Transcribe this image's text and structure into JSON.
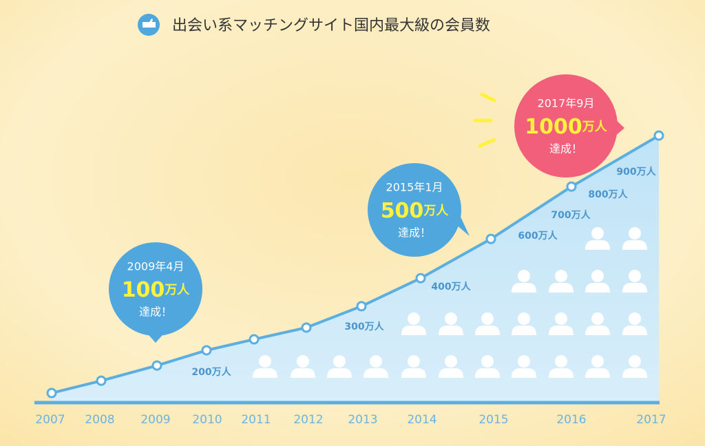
{
  "chart_data": {
    "type": "line",
    "title": "出会い系マッチングサイト国内最大級の会員数",
    "categories": [
      "2007",
      "2008",
      "2009",
      "2010",
      "2011",
      "2012",
      "2013",
      "2014",
      "2015",
      "2016",
      "2017"
    ],
    "values": [
      36,
      82,
      139,
      196,
      237,
      281,
      361,
      466,
      613,
      809,
      1000
    ],
    "color": "#5aaee0",
    "level_labels": [
      "200万人",
      "300万人",
      "400万人",
      "600万人",
      "700万人",
      "800万人",
      "900万人"
    ],
    "callouts": [
      {
        "date": "2009年4月",
        "number": "100",
        "unit": "万人",
        "note": "達成！",
        "color": "#4fa7dd"
      },
      {
        "date": "2015年1月",
        "number": "500",
        "unit": "万人",
        "note": "達成！",
        "color": "#4fa7dd"
      },
      {
        "date": "2017年9月",
        "number": "1000",
        "unit": "万人",
        "note": "達成！",
        "color": "#f25f7a"
      }
    ]
  }
}
